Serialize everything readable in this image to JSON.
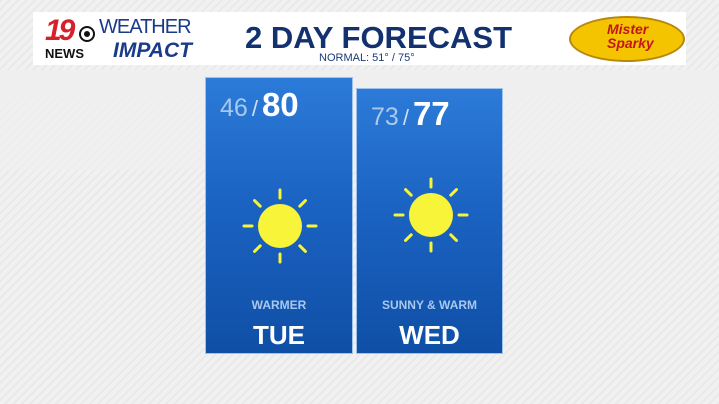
{
  "header": {
    "station": "19",
    "network": "NEWS",
    "brand_top": "WEATHER",
    "brand_bottom": "IMPACT",
    "title": "2 DAY FORECAST",
    "normal": "NORMAL: 51° / 75°",
    "sponsor": "Mister Sparky"
  },
  "colors": {
    "sun": "#f7f43a",
    "panel": "#1b63c2",
    "title": "#12316e"
  },
  "days": [
    {
      "day": "TUE",
      "low": "46",
      "high": "80",
      "condition": "WARMER",
      "icon": "sun-icon"
    },
    {
      "day": "WED",
      "low": "73",
      "high": "77",
      "condition": "SUNNY & WARM",
      "icon": "sun-icon"
    }
  ]
}
